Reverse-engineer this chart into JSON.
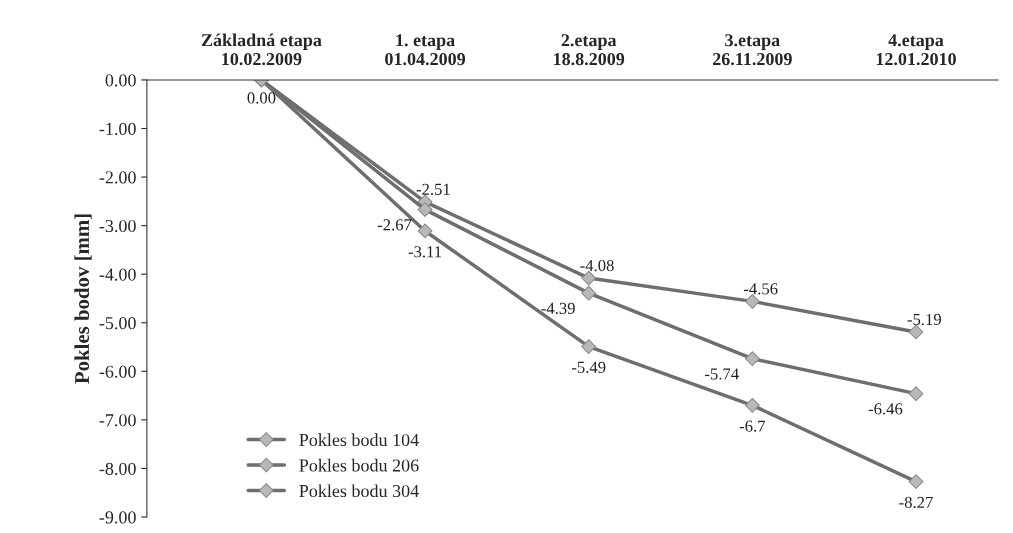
{
  "chart_data": {
    "type": "line",
    "ylabel": "Pokles bodov [mm]",
    "categories": [
      "Základná etapa\n10.02.2009",
      "1. etapa\n01.04.2009",
      "2.etapa\n18.8.2009",
      "3.etapa\n26.11.2009",
      "4.etapa\n12.01.2010"
    ],
    "series": [
      {
        "name": "Pokles bodu 104",
        "color": "#6e6e6e",
        "values": [
          0.0,
          -2.51,
          -4.08,
          -4.56,
          -5.19
        ],
        "value_labels": [
          "0.00",
          "-2.51",
          "-4.08",
          "-4.56",
          "-5.19"
        ]
      },
      {
        "name": "Pokles bodu 206",
        "color": "#6e6e6e",
        "values": [
          0.0,
          -2.67,
          -4.39,
          -5.74,
          -6.46
        ],
        "value_labels": [
          null,
          "-2.67",
          "-4.39",
          "-5.74",
          "-6.46"
        ]
      },
      {
        "name": "Pokles bodu 304",
        "color": "#6e6e6e",
        "values": [
          0.0,
          -3.11,
          -5.49,
          -6.7,
          -8.27
        ],
        "value_labels": [
          null,
          "-3.11",
          "-5.49",
          "-6.7",
          "-8.27"
        ]
      }
    ],
    "ylim": [
      -9,
      0
    ],
    "yticks": [
      {
        "value": 0,
        "label": "0.00"
      },
      {
        "value": -1,
        "label": "-1.00"
      },
      {
        "value": -2,
        "label": "-2.00"
      },
      {
        "value": -3,
        "label": "-3.00"
      },
      {
        "value": -4,
        "label": "-4.00"
      },
      {
        "value": -5,
        "label": "-5.00"
      },
      {
        "value": -6,
        "label": "-6.00"
      },
      {
        "value": -7,
        "label": "-7.00"
      },
      {
        "value": -8,
        "label": "-8.00"
      },
      {
        "value": -9,
        "label": "-9.00"
      }
    ],
    "marker": "diamond",
    "grid": false,
    "legend": "bottom left"
  }
}
